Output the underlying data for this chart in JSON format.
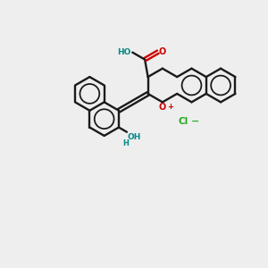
{
  "background_color": "#eeeeee",
  "bond_color": "#1a1a1a",
  "oxygen_color": "#cc0000",
  "chlorine_color": "#22aa22",
  "teal_color": "#008888",
  "figsize": [
    3.0,
    3.0
  ],
  "dpi": 100,
  "R": 19,
  "lw": 1.7
}
